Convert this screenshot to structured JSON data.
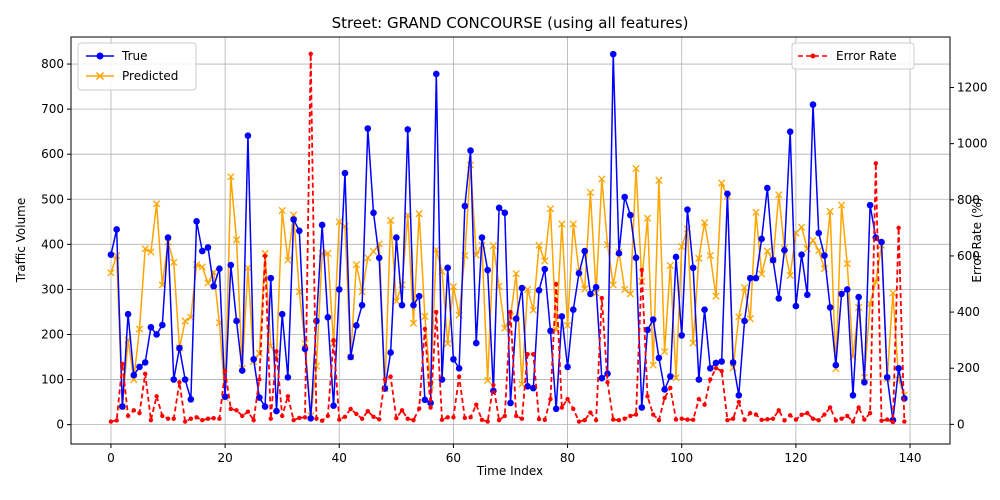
{
  "chart_data": {
    "type": "line",
    "title": "Street: GRAND CONCOURSE (using all features)",
    "xlabel": "Time Index",
    "ylabel_left": "Traffic Volume",
    "ylabel_right": "Error Rate (%)",
    "xlim": [
      -7,
      147
    ],
    "ylim_left": [
      -43,
      860
    ],
    "ylim_right": [
      -70,
      1380
    ],
    "x_ticks": [
      0,
      20,
      40,
      60,
      80,
      100,
      120,
      140
    ],
    "y_ticks_left": [
      0,
      100,
      200,
      300,
      400,
      500,
      600,
      700,
      800
    ],
    "y_ticks_right": [
      0,
      200,
      400,
      600,
      800,
      1000,
      1200
    ],
    "grid": true,
    "legend_left_position": "upper-left",
    "legend_right_position": "upper-right",
    "series": [
      {
        "name": "True",
        "axis": "left",
        "color": "#0000ff",
        "marker": "circle",
        "values": [
          377,
          433,
          40,
          245,
          110,
          128,
          138,
          216,
          200,
          221,
          415,
          100,
          170,
          100,
          56,
          451,
          385,
          393,
          307,
          346,
          62,
          354,
          230,
          120,
          641,
          145,
          60,
          40,
          325,
          30,
          245,
          105,
          455,
          430,
          168,
          14,
          230,
          443,
          238,
          42,
          300,
          558,
          150,
          220,
          265,
          657,
          470,
          370,
          80,
          160,
          415,
          265,
          655,
          265,
          285,
          55,
          48,
          778,
          100,
          348,
          145,
          125,
          485,
          608,
          181,
          415,
          343,
          75,
          481,
          470,
          48,
          235,
          303,
          85,
          81,
          298,
          345,
          208,
          35,
          240,
          128,
          255,
          336,
          385,
          290,
          305,
          103,
          113,
          822,
          380,
          505,
          465,
          370,
          38,
          210,
          233,
          148,
          78,
          107,
          372,
          198,
          477,
          348,
          100,
          255,
          125,
          137,
          140,
          512,
          138,
          65,
          230,
          325,
          325,
          412,
          525,
          365,
          280,
          387,
          650,
          263,
          377,
          288,
          710,
          425,
          375,
          260,
          132,
          290,
          300,
          65,
          283,
          94,
          487,
          415,
          405,
          105,
          10,
          125,
          58
        ]
      },
      {
        "name": "Predicted",
        "axis": "left",
        "color": "#ffa500",
        "marker": "x",
        "values": [
          337,
          375,
          40,
          188,
          100,
          212,
          390,
          383,
          490,
          310,
          405,
          360,
          170,
          230,
          238,
          355,
          350,
          314,
          338,
          226,
          60,
          550,
          410,
          125,
          348,
          140,
          158,
          380,
          175,
          150,
          475,
          365,
          465,
          295,
          180,
          20,
          130,
          380,
          380,
          180,
          450,
          440,
          150,
          355,
          295,
          370,
          384,
          401,
          80,
          453,
          274,
          310,
          465,
          225,
          468,
          240,
          88,
          388,
          340,
          180,
          306,
          243,
          375,
          576,
          376,
          398,
          98,
          397,
          307,
          214,
          240,
          335,
          90,
          300,
          254,
          398,
          363,
          479,
          210,
          445,
          220,
          445,
          339,
          301,
          515,
          292,
          545,
          399,
          310,
          383,
          300,
          290,
          568,
          318,
          458,
          132,
          542,
          162,
          353,
          104,
          395,
          434,
          181,
          369,
          448,
          375,
          285,
          536,
          507,
          126,
          239,
          304,
          235,
          471,
          334,
          385,
          365,
          510,
          391,
          331,
          425,
          438,
          390,
          409,
          386,
          346,
          473,
          124,
          487,
          357,
          151,
          260,
          105,
          268,
          317,
          398,
          102,
          292,
          100,
          66
        ]
      },
      {
        "name": "Error Rate",
        "axis": "right",
        "color": "#ff0000",
        "marker": "dot",
        "values": [
          10,
          14,
          215,
          30,
          50,
          40,
          180,
          15,
          100,
          30,
          20,
          20,
          150,
          10,
          20,
          25,
          15,
          20,
          22,
          20,
          190,
          55,
          50,
          30,
          45,
          15,
          160,
          600,
          20,
          260,
          30,
          100,
          15,
          23,
          25,
          1320,
          20,
          13,
          30,
          300,
          17,
          27,
          55,
          37,
          20,
          47,
          27,
          18,
          160,
          170,
          22,
          50,
          20,
          15,
          56,
          340,
          60,
          400,
          16,
          25,
          25,
          170,
          23,
          25,
          70,
          16,
          10,
          140,
          15,
          30,
          400,
          30,
          20,
          250,
          250,
          19,
          16,
          90,
          500,
          60,
          90,
          55,
          10,
          15,
          42,
          15,
          450,
          150,
          17,
          15,
          20,
          30,
          35,
          550,
          100,
          35,
          15,
          94,
          130,
          17,
          20,
          17,
          16,
          90,
          70,
          160,
          200,
          190,
          15,
          20,
          80,
          16,
          40,
          35,
          16,
          18,
          20,
          50,
          14,
          32,
          17,
          34,
          40,
          20,
          15,
          35,
          60,
          14,
          20,
          30,
          10,
          60,
          17,
          40,
          930,
          13,
          17,
          8,
          700,
          10
        ]
      }
    ]
  }
}
